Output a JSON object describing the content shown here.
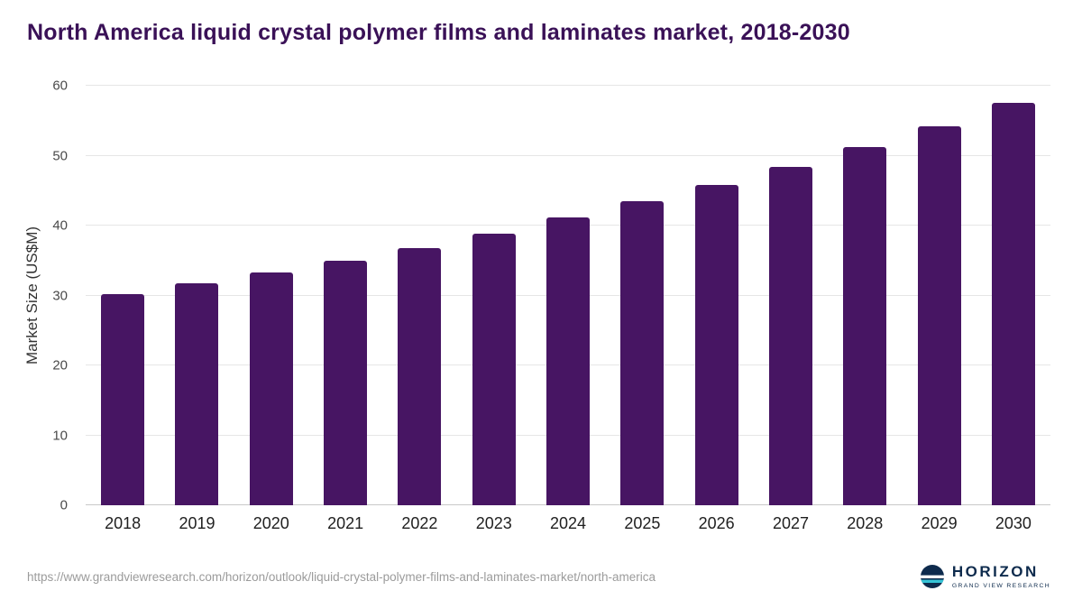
{
  "title": "North America liquid crystal polymer films and laminates market, 2018-2030",
  "colors": {
    "bar": "#471563",
    "title": "#3a1157",
    "grid": "#e6e6e6",
    "axis_text": "#4a4a4a",
    "url_text": "#9b9b9b",
    "logo_navy": "#0e2b4d",
    "logo_teal": "#35c4d7"
  },
  "chart_data": {
    "type": "bar",
    "title": "North America liquid crystal polymer films and laminates market, 2018-2030",
    "categories": [
      "2018",
      "2019",
      "2020",
      "2021",
      "2022",
      "2023",
      "2024",
      "2025",
      "2026",
      "2027",
      "2028",
      "2029",
      "2030"
    ],
    "values": [
      30.2,
      31.7,
      33.3,
      35.0,
      36.8,
      38.9,
      41.1,
      43.5,
      45.8,
      48.4,
      51.2,
      54.2,
      57.6
    ],
    "xlabel": "",
    "ylabel": "Market Size (US$M)",
    "ylim": [
      0,
      60
    ],
    "yticks": [
      0,
      10,
      20,
      30,
      40,
      50,
      60
    ],
    "grid": true,
    "legend": "none"
  },
  "footer": {
    "source_url": "https://www.grandviewresearch.com/horizon/outlook/liquid-crystal-polymer-films-and-laminates-market/north-america",
    "logo_name": "HORIZON",
    "logo_tagline": "GRAND VIEW RESEARCH"
  }
}
